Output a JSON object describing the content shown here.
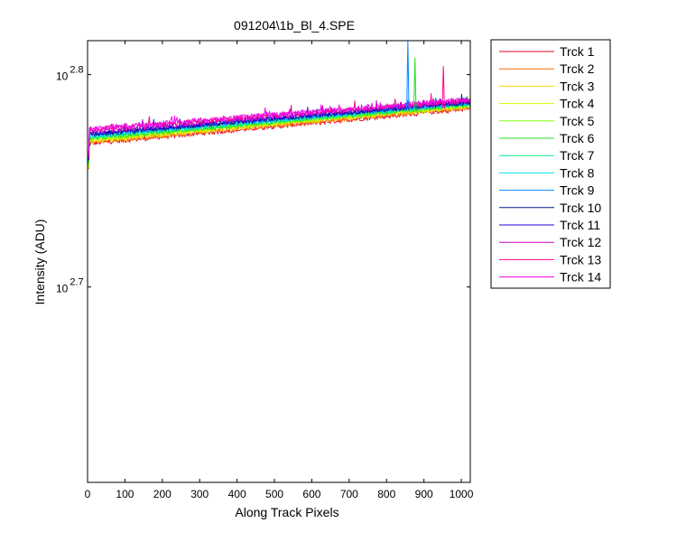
{
  "chart_data": {
    "type": "line",
    "title": "091204\\1b_Bl_4.SPE",
    "xlabel": "Along Track Pixels",
    "ylabel": "Intensity (ADU)",
    "xlim": [
      0,
      1024
    ],
    "ylim_log10": [
      2.608,
      2.816
    ],
    "y_scale": "log",
    "grid": false,
    "legend_placement": "outside-right",
    "x_ticks": [
      0,
      100,
      200,
      300,
      400,
      500,
      600,
      700,
      800,
      900,
      1000
    ],
    "y_ticks": [
      {
        "base": "10",
        "exponent": "2.8",
        "value_log10": 2.8
      },
      {
        "base": "10",
        "exponent": "2.7",
        "value_log10": 2.7
      }
    ],
    "series": [
      {
        "name": "Trck 1",
        "color": "#e8001e",
        "start_log10": 2.7675,
        "end_log10": 2.784
      },
      {
        "name": "Trck 2",
        "color": "#ff6a00",
        "start_log10": 2.768,
        "end_log10": 2.7845
      },
      {
        "name": "Trck 3",
        "color": "#ffd700",
        "start_log10": 2.7685,
        "end_log10": 2.785
      },
      {
        "name": "Trck 4",
        "color": "#c8ff00",
        "start_log10": 2.769,
        "end_log10": 2.7853
      },
      {
        "name": "Trck 5",
        "color": "#7fff00",
        "start_log10": 2.7695,
        "end_log10": 2.7856
      },
      {
        "name": "Trck 6",
        "color": "#22dd22",
        "start_log10": 2.77,
        "end_log10": 2.7859
      },
      {
        "name": "Trck 7",
        "color": "#00ee88",
        "start_log10": 2.7705,
        "end_log10": 2.7862
      },
      {
        "name": "Trck 8",
        "color": "#00e5e5",
        "start_log10": 2.771,
        "end_log10": 2.7865
      },
      {
        "name": "Trck 9",
        "color": "#0088ff",
        "start_log10": 2.7715,
        "end_log10": 2.7868
      },
      {
        "name": "Trck 10",
        "color": "#001a88",
        "start_log10": 2.7718,
        "end_log10": 2.787
      },
      {
        "name": "Trck 11",
        "color": "#2200dd",
        "start_log10": 2.7722,
        "end_log10": 2.7873
      },
      {
        "name": "Trck 12",
        "color": "#cc00cc",
        "start_log10": 2.773,
        "end_log10": 2.7877
      },
      {
        "name": "Trck 13",
        "color": "#ff0088",
        "start_log10": 2.774,
        "end_log10": 2.788
      },
      {
        "name": "Trck 14",
        "color": "#ee00ee",
        "start_log10": 2.7745,
        "end_log10": 2.7883
      }
    ],
    "spikes": [
      {
        "x": 857,
        "peak_log10": 2.816,
        "color": "#0088ff"
      },
      {
        "x": 876,
        "peak_log10": 2.808,
        "color": "#22dd22"
      },
      {
        "x": 952,
        "peak_log10": 2.804,
        "color": "#ff0088"
      }
    ]
  }
}
